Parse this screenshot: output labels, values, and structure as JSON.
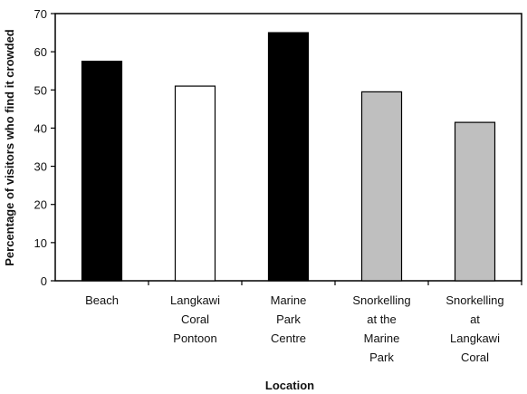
{
  "chart_data": {
    "type": "bar",
    "title": "",
    "xlabel": "Location",
    "ylabel": "Percentage of visitors who find it crowded",
    "ylim": [
      0,
      70
    ],
    "yticks": [
      0,
      10,
      20,
      30,
      40,
      50,
      60,
      70
    ],
    "grid": false,
    "categories": [
      [
        "Beach"
      ],
      [
        "Langkawi",
        "Coral",
        "Pontoon"
      ],
      [
        "Marine",
        "Park",
        "Centre"
      ],
      [
        "Snorkelling",
        "at the",
        "Marine",
        "Park"
      ],
      [
        "Snorkelling",
        "at",
        "Langkawi",
        "Coral"
      ]
    ],
    "values": [
      57.5,
      51,
      65,
      49.5,
      41.5
    ],
    "bar_colors": [
      "#000000",
      "#ffffff",
      "#000000",
      "#bfbfbf",
      "#bfbfbf"
    ],
    "bar_stroke": "#000000",
    "axis_color": "#000000"
  }
}
